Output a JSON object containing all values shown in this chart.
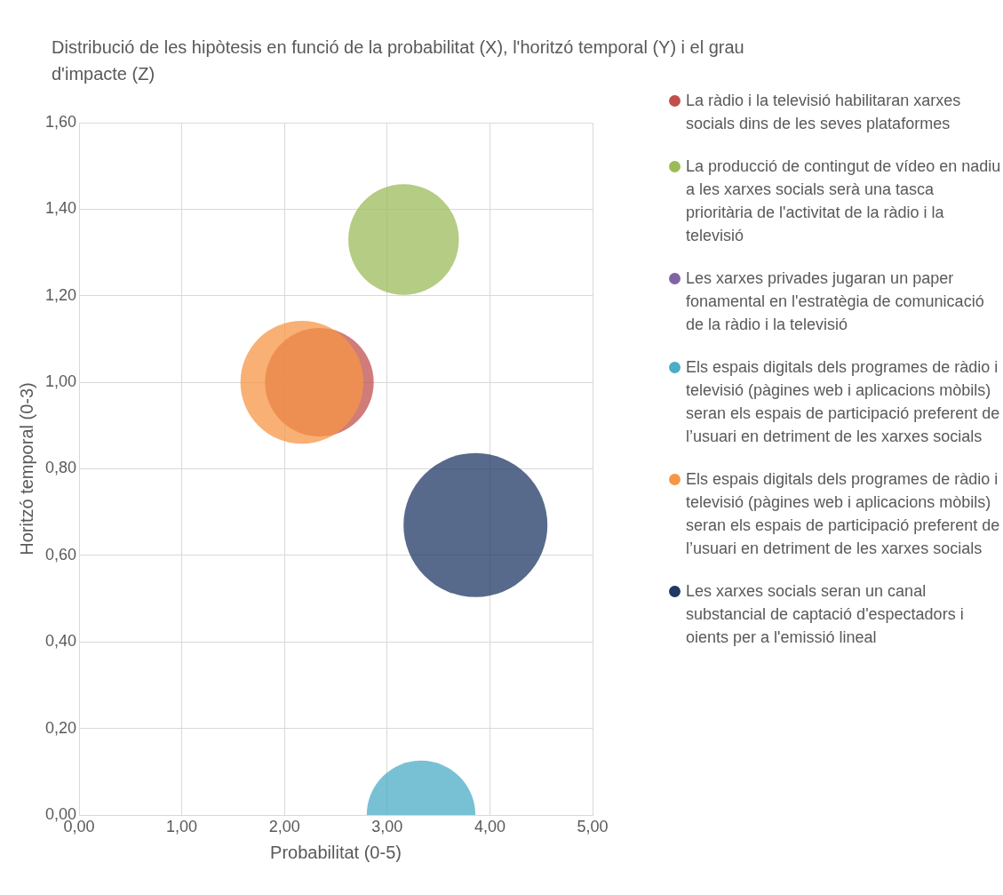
{
  "chart_data": {
    "type": "bubble",
    "title": "Distribució de les hipòtesis en funció de la probabilitat (X), l'horitzó temporal (Y) i el grau d'impacte (Z)",
    "xlabel": "Probabilitat (0-5)",
    "ylabel": "Horitzó temporal (0-3)",
    "xlim": [
      0,
      5
    ],
    "xticks": [
      {
        "value": 0,
        "label": "0,00"
      },
      {
        "value": 1,
        "label": "1,00"
      },
      {
        "value": 2,
        "label": "2,00"
      },
      {
        "value": 3,
        "label": "3,00"
      },
      {
        "value": 4,
        "label": "4,00"
      },
      {
        "value": 5,
        "label": "5,00"
      }
    ],
    "ylim": [
      0,
      1.6
    ],
    "yticks": [
      {
        "value": 0,
        "label": "0,00"
      },
      {
        "value": 0.2,
        "label": "0,20"
      },
      {
        "value": 0.4,
        "label": "0,40"
      },
      {
        "value": 0.6,
        "label": "0,60"
      },
      {
        "value": 0.8,
        "label": "0,80"
      },
      {
        "value": 1,
        "label": "1,00"
      },
      {
        "value": 1.2,
        "label": "1,20"
      },
      {
        "value": 1.4,
        "label": "1,40"
      },
      {
        "value": 1.6,
        "label": "1,60"
      }
    ],
    "grid": true,
    "legend": "right",
    "series": [
      {
        "name": "La ràdio i la televisió habilitaran xarxes socials dins de les seves plataformes",
        "color": "#c0504d",
        "x": [
          2.34
        ],
        "values": [
          1.0
        ],
        "sizes": [
          0.57
        ]
      },
      {
        "name": "La producció de contingut de vídeo en nadiu a les xarxes socials serà una tasca prioritària de l'activitat de la ràdio i la televisió",
        "color": "#9bbb59",
        "x": [
          3.16
        ],
        "values": [
          1.33
        ],
        "sizes": [
          0.59
        ]
      },
      {
        "name": "Les xarxes privades jugaran un paper fonamental en l'estratègia de comunicació de la ràdio i la televisió",
        "color": "#8064a2",
        "x": [
          null
        ],
        "values": [
          null
        ],
        "sizes": [
          null
        ]
      },
      {
        "name": "Els espais digitals dels programes de ràdio i televisió (pàgines web i aplicacions mòbils) seran els espais de participació preferent de l’usuari en detriment de les xarxes socials",
        "color": "#4bacc6",
        "x": [
          3.33
        ],
        "values": [
          0
        ],
        "sizes": [
          0.57
        ]
      },
      {
        "name": "Els espais digitals dels programes de ràdio i televisió (pàgines web i aplicacions mòbils) seran els espais de participació preferent de l’usuari en detriment de les xarxes socials",
        "color": "#f79646",
        "x": [
          2.17
        ],
        "values": [
          1.0
        ],
        "sizes": [
          0.73
        ]
      },
      {
        "name": "Les xarxes socials seran un canal substancial de captació d'espectadors i oients per a l'emissió lineal",
        "color": "#1f3864",
        "x": [
          3.86
        ],
        "values": [
          0.67
        ],
        "sizes": [
          1
        ]
      }
    ]
  }
}
